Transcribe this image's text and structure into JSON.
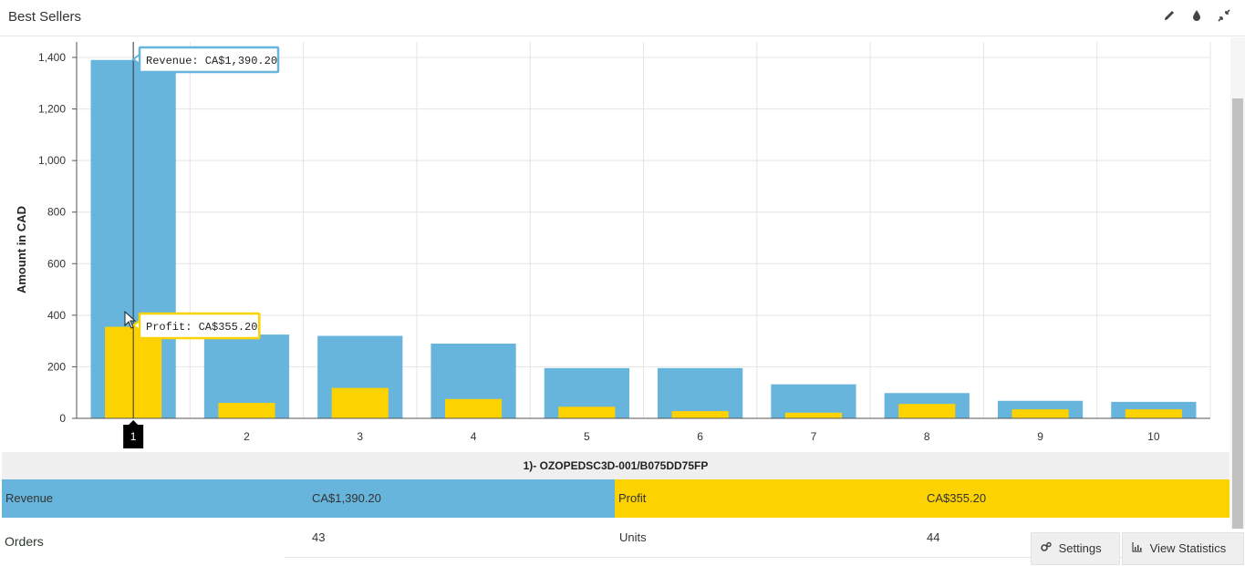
{
  "header": {
    "title": "Best Sellers"
  },
  "icons": {
    "edit": "pencil-icon",
    "color": "droplet-icon",
    "collapse": "compress-icon"
  },
  "colors": {
    "revenue": "#67b5dc",
    "profit": "#fcd200",
    "grid": "#e4e4e4",
    "marker": "#000000"
  },
  "tooltips": {
    "revenue": "Revenue: CA$1,390.20",
    "profit": "Profit: CA$355.20"
  },
  "chart_data": {
    "type": "bar",
    "categories": [
      "1",
      "2",
      "3",
      "4",
      "5",
      "6",
      "7",
      "8",
      "9",
      "10"
    ],
    "series": [
      {
        "name": "Revenue",
        "values": [
          1390.2,
          325,
          320,
          290,
          195,
          195,
          132,
          98,
          68,
          64
        ]
      },
      {
        "name": "Profit",
        "values": [
          355.2,
          60,
          118,
          75,
          45,
          28,
          22,
          56,
          35,
          35
        ]
      }
    ],
    "xlabel": "",
    "ylabel": "Amount in CAD",
    "ylim": [
      0,
      1400
    ],
    "yticks": [
      0,
      200,
      400,
      600,
      800,
      1000,
      1200,
      1400
    ],
    "ytick_labels": [
      "0",
      "200",
      "400",
      "600",
      "800",
      "1,000",
      "1,200",
      "1,400"
    ],
    "highlighted_category": "1",
    "grid": true
  },
  "detail": {
    "title": "1)- OZOPEDSC3D-001/B075DD75FP",
    "revenue_label": "Revenue",
    "revenue_value": "CA$1,390.20",
    "profit_label": "Profit",
    "profit_value": "CA$355.20",
    "orders_label": "Orders",
    "orders_value": "43",
    "units_label": "Units",
    "units_value": "44"
  },
  "buttons": {
    "settings": "Settings",
    "view_statistics": "View Statistics"
  }
}
